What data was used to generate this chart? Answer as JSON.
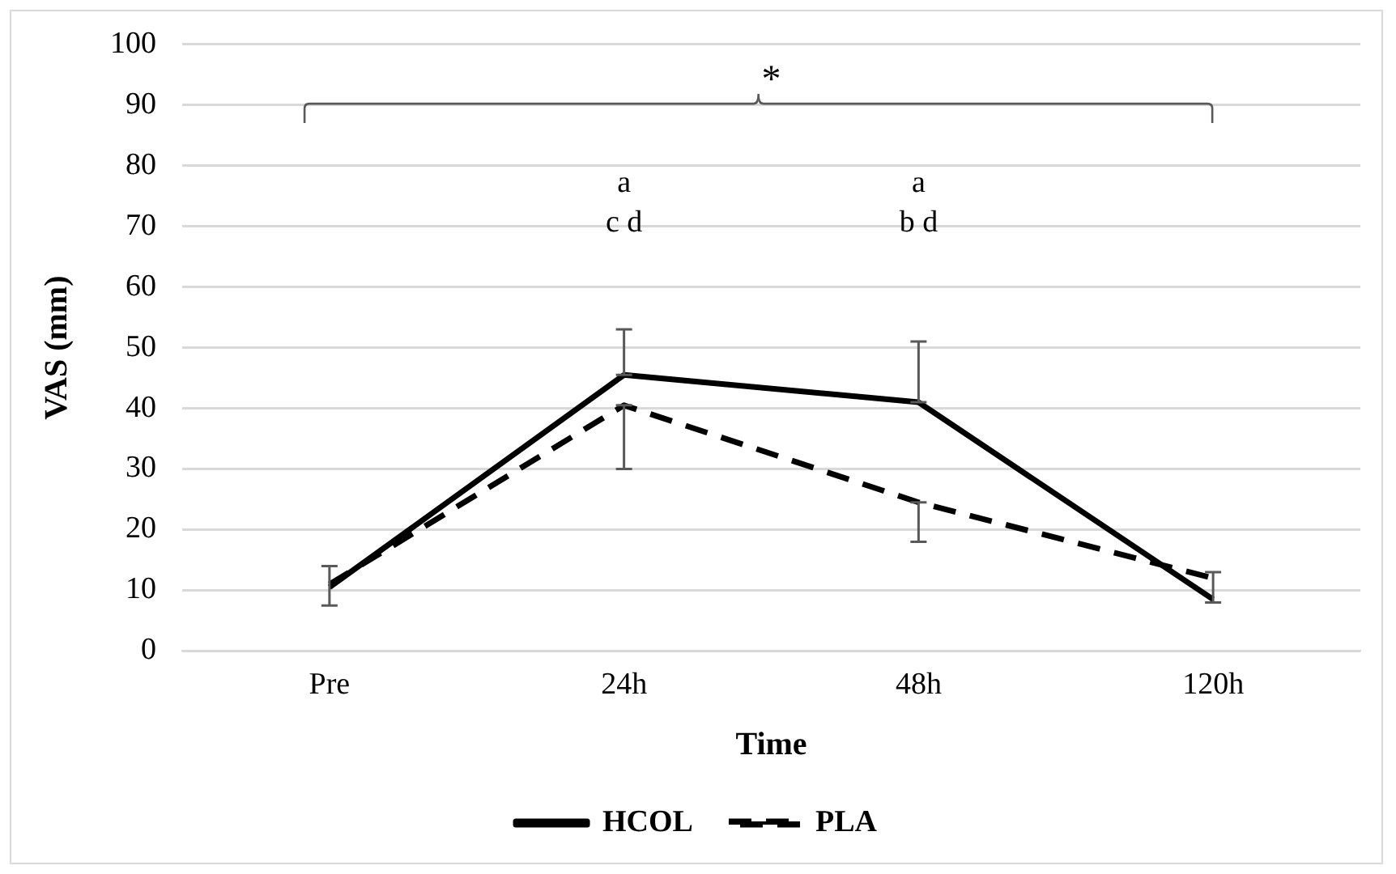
{
  "chart_data": {
    "type": "line",
    "xlabel": "Time",
    "ylabel": "VAS (mm)",
    "categories": [
      "Pre",
      "24h",
      "48h",
      "120h"
    ],
    "series": [
      {
        "name": "HCOL",
        "color": "#000000",
        "line_style": "solid",
        "values": [
          10.5,
          45.5,
          41,
          8.5
        ],
        "errors": [
          [
            7.5,
            14
          ],
          [
            45.5,
            53
          ],
          [
            41,
            51
          ],
          null
        ]
      },
      {
        "name": "PLA",
        "color": "#000000",
        "line_style": "dashed",
        "values": [
          11,
          40.5,
          24.5,
          12
        ],
        "errors": [
          null,
          [
            30,
            40.5
          ],
          [
            18,
            24.5
          ],
          [
            8,
            13
          ]
        ]
      }
    ],
    "ylim": [
      0,
      100
    ],
    "yticks": [
      0,
      10,
      20,
      30,
      40,
      50,
      60,
      70,
      80,
      90,
      100
    ],
    "grid": "y",
    "legend": "bottom",
    "marker": "none",
    "annotations": [
      "*",
      "a",
      "c d",
      "a",
      "b d"
    ]
  }
}
